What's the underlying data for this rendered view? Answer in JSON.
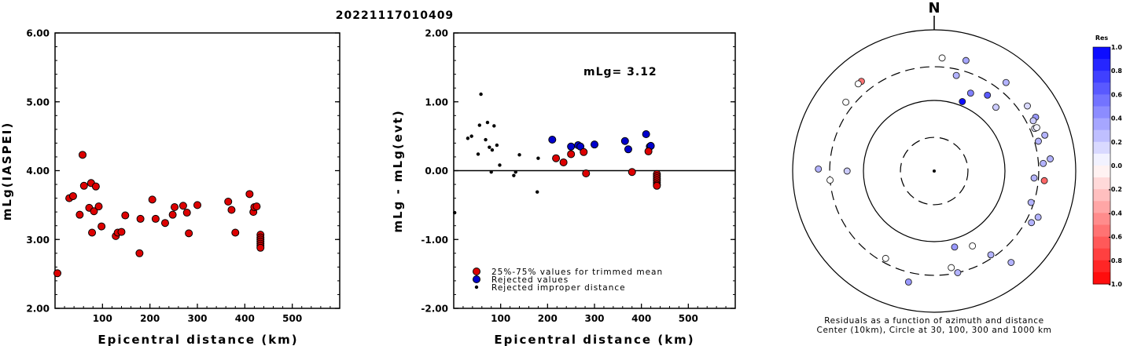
{
  "title": "20221117010409",
  "colors": {
    "trimmed": "#dd0000",
    "rejected": "#0000cc",
    "improper": "#000000"
  },
  "chart_data": [
    {
      "type": "scatter",
      "ylabel": "mLg(IASPEI)",
      "xlabel": "Epicentral distance (km)",
      "xlim": [
        0,
        600
      ],
      "ylim": [
        2.0,
        6.0
      ],
      "x_ticks": [
        "100",
        "200",
        "300",
        "400",
        "500"
      ],
      "y_ticks": [
        "2.00",
        "3.00",
        "4.00",
        "5.00",
        "6.00"
      ],
      "series": [
        {
          "style": "trimmed",
          "points": [
            [
              5,
              2.51
            ],
            [
              30,
              3.6
            ],
            [
              38,
              3.63
            ],
            [
              52,
              3.36
            ],
            [
              58,
              4.23
            ],
            [
              61,
              3.78
            ],
            [
              72,
              3.46
            ],
            [
              76,
              3.82
            ],
            [
              78,
              3.1
            ],
            [
              82,
              3.41
            ],
            [
              86,
              3.77
            ],
            [
              92,
              3.48
            ],
            [
              98,
              3.19
            ],
            [
              128,
              3.05
            ],
            [
              132,
              3.1
            ],
            [
              140,
              3.11
            ],
            [
              148,
              3.35
            ],
            [
              178,
              2.8
            ],
            [
              180,
              3.3
            ],
            [
              205,
              3.58
            ],
            [
              212,
              3.3
            ],
            [
              232,
              3.24
            ],
            [
              248,
              3.36
            ],
            [
              252,
              3.47
            ],
            [
              270,
              3.49
            ],
            [
              278,
              3.39
            ],
            [
              282,
              3.09
            ],
            [
              300,
              3.5
            ],
            [
              365,
              3.55
            ],
            [
              372,
              3.43
            ],
            [
              380,
              3.1
            ],
            [
              410,
              3.66
            ],
            [
              418,
              3.4
            ],
            [
              420,
              3.47
            ],
            [
              425,
              3.48
            ],
            [
              433,
              3.07
            ],
            [
              433,
              3.03
            ],
            [
              433,
              3.0
            ],
            [
              433,
              2.97
            ],
            [
              433,
              2.94
            ],
            [
              433,
              2.91
            ],
            [
              433,
              2.88
            ]
          ]
        }
      ]
    },
    {
      "type": "scatter",
      "ylabel": "mLg - mLg(evt)",
      "xlabel": "Epicentral distance (km)",
      "xlim": [
        0,
        600
      ],
      "ylim": [
        -2.0,
        2.0
      ],
      "x_ticks": [
        "100",
        "200",
        "300",
        "400",
        "500"
      ],
      "y_ticks": [
        "-2.00",
        "-1.00",
        "0.00",
        "1.00",
        "2.00"
      ],
      "annotation": "mLg= 3.12",
      "legend": [
        "25%-75% values for trimmed mean",
        "Rejected values",
        "Rejected improper distance"
      ],
      "series": [
        {
          "style": "improper",
          "points": [
            [
              2,
              -0.61
            ],
            [
              30,
              0.47
            ],
            [
              38,
              0.5
            ],
            [
              52,
              0.24
            ],
            [
              55,
              0.66
            ],
            [
              58,
              1.11
            ],
            [
              68,
              0.45
            ],
            [
              72,
              0.7
            ],
            [
              76,
              0.34
            ],
            [
              80,
              -0.02
            ],
            [
              82,
              0.3
            ],
            [
              86,
              0.65
            ],
            [
              92,
              0.37
            ],
            [
              98,
              0.08
            ],
            [
              128,
              -0.07
            ],
            [
              132,
              -0.02
            ],
            [
              140,
              0.23
            ],
            [
              178,
              -0.31
            ],
            [
              180,
              0.18
            ]
          ]
        },
        {
          "style": "rejected",
          "points": [
            [
              210,
              0.45
            ],
            [
              250,
              0.35
            ],
            [
              265,
              0.37
            ],
            [
              270,
              0.35
            ],
            [
              300,
              0.38
            ],
            [
              365,
              0.43
            ],
            [
              372,
              0.31
            ],
            [
              410,
              0.53
            ],
            [
              418,
              0.35
            ],
            [
              420,
              0.36
            ]
          ]
        },
        {
          "style": "trimmed",
          "points": [
            [
              218,
              0.18
            ],
            [
              234,
              0.12
            ],
            [
              250,
              0.24
            ],
            [
              277,
              0.27
            ],
            [
              282,
              -0.04
            ],
            [
              380,
              -0.02
            ],
            [
              415,
              0.28
            ],
            [
              433,
              -0.05
            ],
            [
              433,
              -0.08
            ],
            [
              433,
              -0.11
            ],
            [
              433,
              -0.14
            ],
            [
              433,
              -0.17
            ],
            [
              433,
              -0.2
            ],
            [
              433,
              -0.22
            ]
          ]
        }
      ]
    },
    {
      "type": "polar-scatter",
      "north_label": "N",
      "caption_line1": "Residuals as a function of azimuth and distance",
      "caption_line2": "Center (10km), Circle at 30, 100, 300 and 1000 km",
      "scale_title": "Res",
      "scale_ticks": [
        "1.0",
        "0.8",
        "0.6",
        "0.4",
        "0.2",
        "0.0",
        "-0.2",
        "-0.4",
        "-0.6",
        "-0.8",
        "-1.0"
      ],
      "rings_km": [
        30,
        100,
        300,
        1000
      ],
      "points": [
        {
          "az": 321,
          "dist": 431,
          "res": -0.55
        },
        {
          "az": 319,
          "dist": 433,
          "res": 0.0
        },
        {
          "az": 308,
          "dist": 384,
          "res": 0.0
        },
        {
          "az": 271,
          "dist": 433,
          "res": 0.3
        },
        {
          "az": 265,
          "dist": 300,
          "res": 0.0
        },
        {
          "az": 270,
          "dist": 170,
          "res": 0.2
        },
        {
          "az": 4,
          "dist": 403,
          "res": 0.0
        },
        {
          "az": 16,
          "dist": 425,
          "res": 0.35
        },
        {
          "az": 13,
          "dist": 245,
          "res": 0.3
        },
        {
          "az": 39,
          "dist": 410,
          "res": 0.3
        },
        {
          "az": 35,
          "dist": 205,
          "res": 0.65
        },
        {
          "az": 25,
          "dist": 165,
          "res": 0.5
        },
        {
          "az": 22,
          "dist": 115,
          "res": 0.95
        },
        {
          "az": 44,
          "dist": 180,
          "res": 0.2
        },
        {
          "az": 55,
          "dist": 405,
          "res": 0.15
        },
        {
          "az": 62,
          "dist": 420,
          "res": 0.4
        },
        {
          "az": 63,
          "dist": 372,
          "res": 0.2
        },
        {
          "az": 67,
          "dist": 350,
          "res": 0.1
        },
        {
          "az": 67,
          "dist": 375,
          "res": 0.05
        },
        {
          "az": 72,
          "dist": 440,
          "res": 0.3
        },
        {
          "az": 74,
          "dist": 340,
          "res": 0.3
        },
        {
          "az": 84,
          "dist": 445,
          "res": 0.3
        },
        {
          "az": 86,
          "dist": 350,
          "res": 0.3
        },
        {
          "az": 94,
          "dist": 260,
          "res": 0.3
        },
        {
          "az": 95,
          "dist": 365,
          "res": -0.6
        },
        {
          "az": 108,
          "dist": 275,
          "res": 0.3
        },
        {
          "az": 118,
          "dist": 360,
          "res": 0.3
        },
        {
          "az": 114,
          "dist": 405,
          "res": 0.3
        },
        {
          "az": 165,
          "dist": 130,
          "res": 0.4
        },
        {
          "az": 146,
          "dist": 270,
          "res": 0.3
        },
        {
          "az": 153,
          "dist": 155,
          "res": 0.0
        },
        {
          "az": 140,
          "dist": 490,
          "res": 0.3
        },
        {
          "az": 170,
          "dist": 245,
          "res": 0.0
        },
        {
          "az": 167,
          "dist": 300,
          "res": 0.3
        },
        {
          "az": 193,
          "dist": 410,
          "res": 0.4
        },
        {
          "az": 209,
          "dist": 260,
          "res": 0.0
        }
      ]
    }
  ]
}
